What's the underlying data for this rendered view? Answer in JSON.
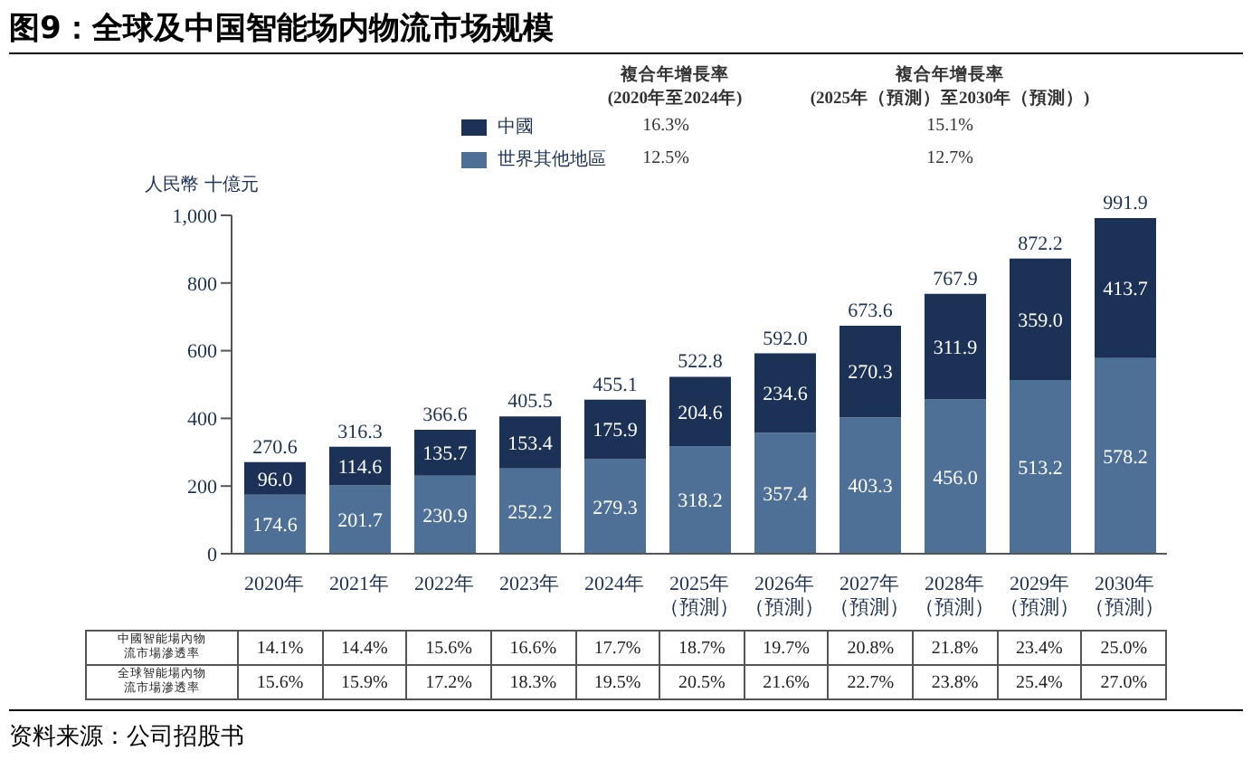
{
  "chart_data": {
    "type": "bar",
    "title": "图9：全球及中国智能场内物流市场规模",
    "ylabel": "人民幣 十億元",
    "categories": [
      "2020年",
      "2021年",
      "2022年",
      "2023年",
      "2024年",
      "2025年（預測）",
      "2026年（預測）",
      "2027年（預測）",
      "2028年（預測）",
      "2029年（預測）",
      "2030年（預測）"
    ],
    "stacked": true,
    "legend": "top",
    "series": [
      {
        "name": "世界其他地區",
        "color": "#4f7096",
        "values": [
          174.6,
          201.7,
          230.9,
          252.2,
          279.3,
          318.2,
          357.4,
          403.3,
          456.0,
          513.2,
          578.2
        ],
        "value_labels": [
          "174.6",
          "201.7",
          "230.9",
          "252.2",
          "279.3",
          "318.2",
          "357.4",
          "403.3",
          "456.0",
          "513.2",
          "578.2"
        ]
      },
      {
        "name": "中國",
        "color": "#1b3155",
        "values": [
          96.0,
          114.6,
          135.7,
          153.4,
          175.9,
          204.6,
          234.6,
          270.3,
          311.9,
          359.0,
          413.7
        ],
        "value_labels": [
          "96.0",
          "114.6",
          "135.7",
          "153.4",
          "175.9",
          "204.6",
          "234.6",
          "270.3",
          "311.9",
          "359.0",
          "413.7"
        ]
      }
    ],
    "totals": [
      "270.6",
      "316.3",
      "366.6",
      "405.5",
      "455.1",
      "522.8",
      "592.0",
      "673.6",
      "767.9",
      "872.2",
      "991.9"
    ],
    "ylim": [
      0,
      1000
    ],
    "yticks": [
      0,
      200,
      400,
      600,
      800,
      {
        "value": 1000,
        "label": "1,000"
      }
    ],
    "grid": false,
    "annotations": [
      "複合年增長率",
      "(2020年至2024年)",
      "複合年增長率",
      "(2025年（預測）至2030年（預測）)",
      "16.3%",
      "15.1%",
      "12.5%",
      "12.7%",
      "中國智能場內物流市場滲透率",
      "14.1%",
      "14.4%",
      "15.6%",
      "16.6%",
      "17.7%",
      "18.7%",
      "19.7%",
      "20.8%",
      "21.8%",
      "23.4%",
      "25.0%",
      "全球智能場內物流市場滲透率",
      "15.6%",
      "15.9%",
      "17.2%",
      "18.3%",
      "19.5%",
      "20.5%",
      "21.6%",
      "22.7%",
      "23.8%",
      "25.4%",
      "27.0%",
      "资料来源：公司招股书"
    ]
  }
}
